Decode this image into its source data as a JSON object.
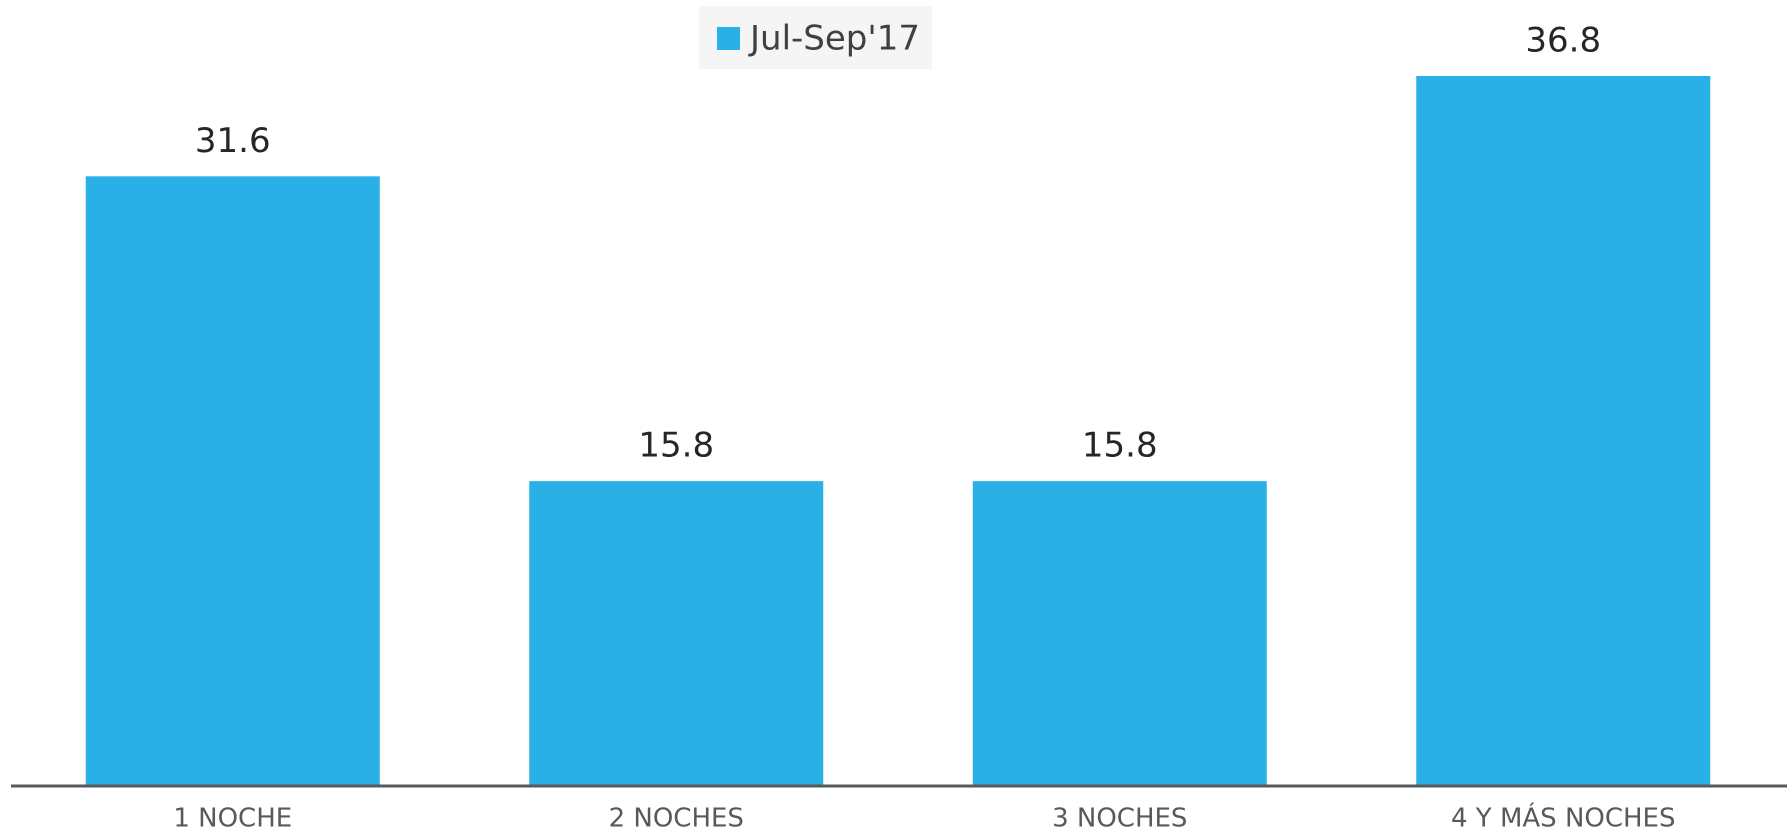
{
  "chart_data": {
    "type": "bar",
    "categories": [
      "1 NOCHE",
      "2 NOCHES",
      "3 NOCHES",
      "4 Y MÁS NOCHES"
    ],
    "series": [
      {
        "name": "Jul-Sep'17",
        "color": "#29b0e6",
        "values": [
          31.6,
          15.8,
          15.8,
          36.8
        ]
      }
    ],
    "legend": "top"
  }
}
